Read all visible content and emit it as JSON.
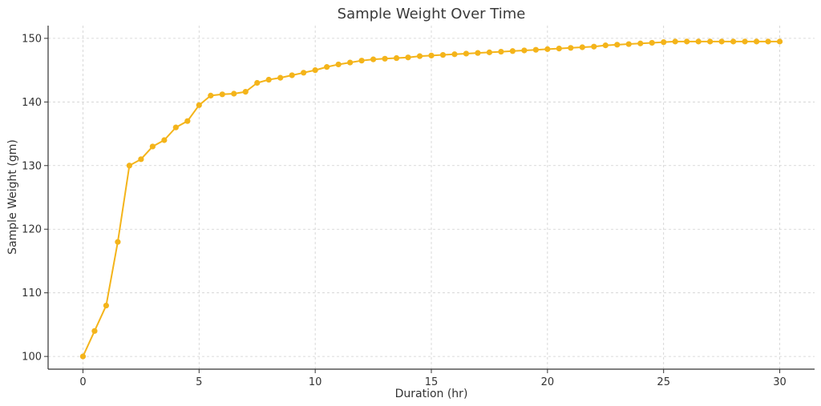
{
  "chart_data": {
    "type": "line",
    "title": "Sample Weight Over Time",
    "xlabel": "Duration (hr)",
    "ylabel": "Sample Weight (gm)",
    "xlim": [
      -1.5,
      31.5
    ],
    "ylim": [
      98,
      152
    ],
    "xticks": [
      0,
      5,
      10,
      15,
      20,
      25,
      30
    ],
    "yticks": [
      100,
      110,
      120,
      130,
      140,
      150
    ],
    "grid": true,
    "color": "#F4B41A",
    "series": [
      {
        "x": [
          0,
          0.5,
          1,
          1.5,
          2,
          2.5,
          3,
          3.5,
          4,
          4.5,
          5,
          5.5,
          6,
          6.5,
          7,
          7.5,
          8,
          8.5,
          9,
          9.5,
          10,
          10.5,
          11,
          11.5,
          12,
          12.5,
          13,
          13.5,
          14,
          14.5,
          15,
          15.5,
          16,
          16.5,
          17,
          17.5,
          18,
          18.5,
          19,
          19.5,
          20,
          20.5,
          21,
          21.5,
          22,
          22.5,
          23,
          23.5,
          24,
          24.5,
          25,
          25.5,
          26,
          26.5,
          27,
          27.5,
          28,
          28.5,
          29,
          29.5,
          30
        ],
        "y": [
          100,
          104,
          108,
          118,
          130,
          131,
          133,
          134,
          136,
          137,
          139.5,
          141,
          141.2,
          141.3,
          141.6,
          143,
          143.5,
          143.8,
          144.2,
          144.6,
          145,
          145.5,
          145.9,
          146.2,
          146.5,
          146.7,
          146.8,
          146.9,
          147,
          147.2,
          147.3,
          147.4,
          147.5,
          147.6,
          147.7,
          147.8,
          147.9,
          148,
          148.1,
          148.2,
          148.3,
          148.4,
          148.5,
          148.6,
          148.7,
          148.9,
          149,
          149.1,
          149.2,
          149.3,
          149.4,
          149.5,
          149.5,
          149.5,
          149.5,
          149.5,
          149.5,
          149.5,
          149.5,
          149.5,
          149.5
        ]
      }
    ]
  }
}
